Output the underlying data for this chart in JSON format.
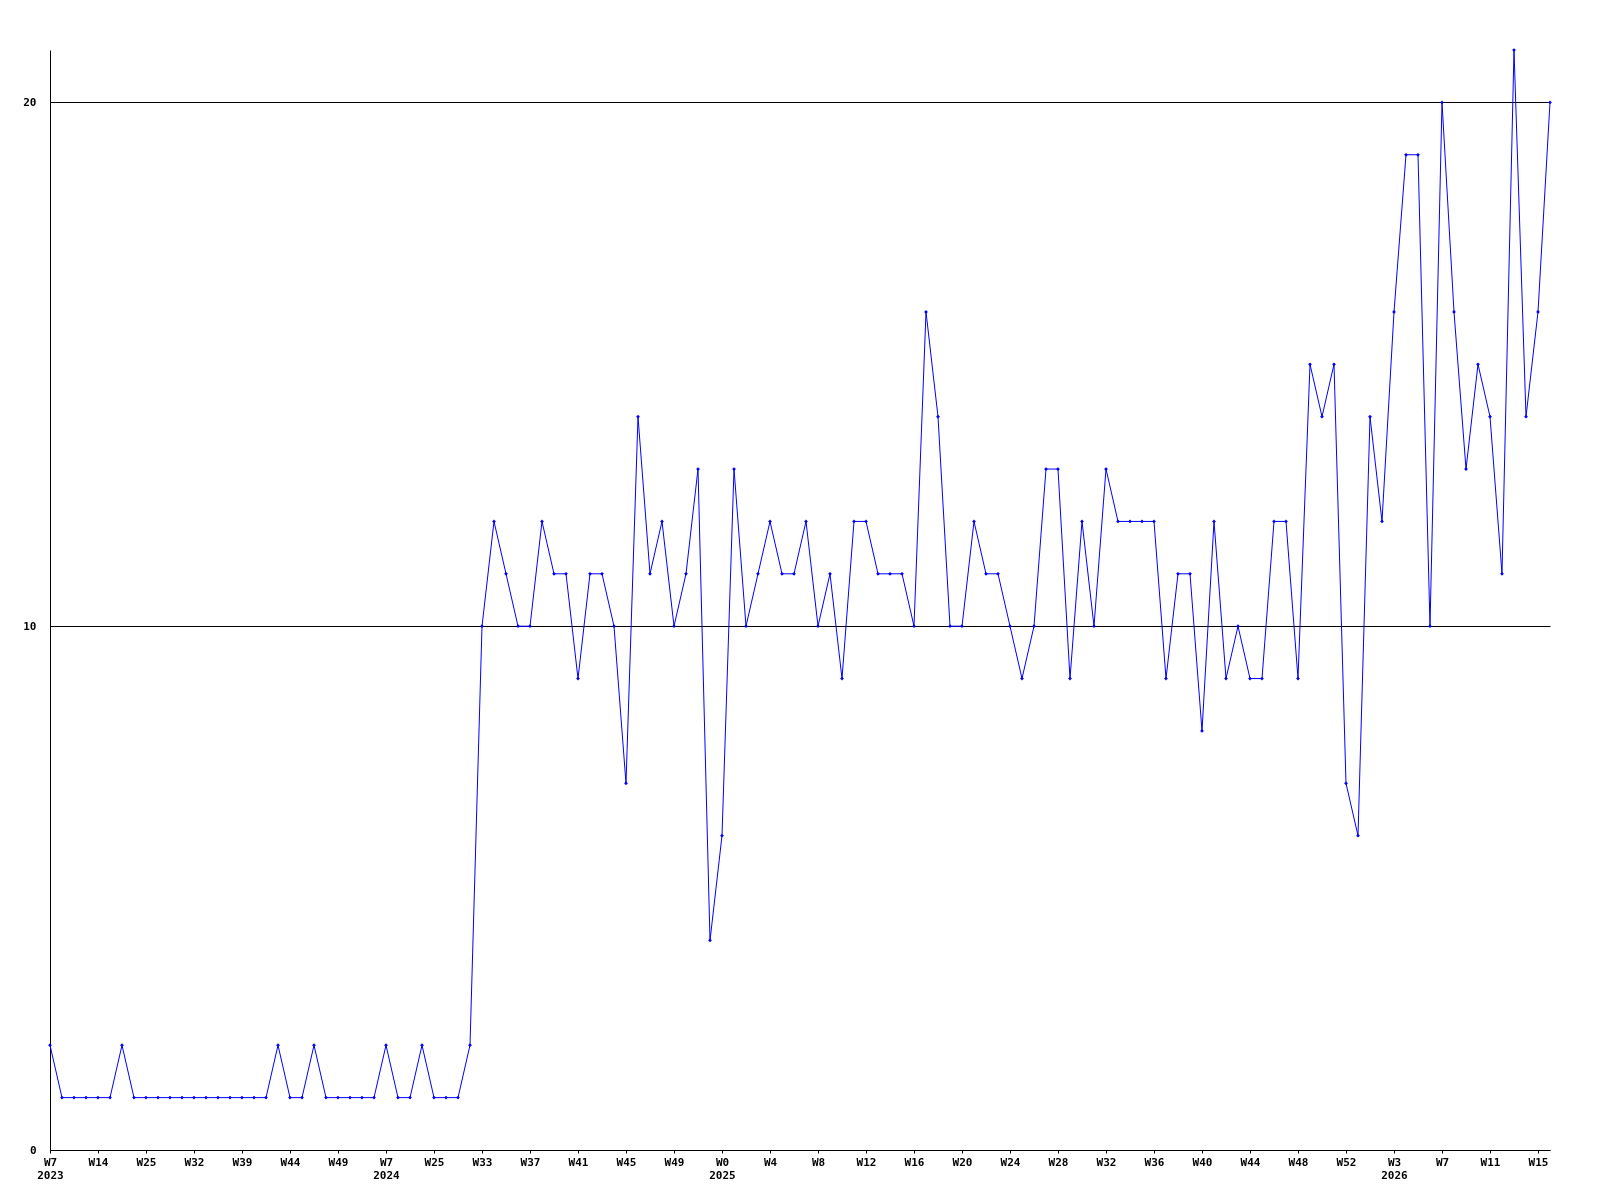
{
  "chart_data": {
    "type": "line",
    "categories": [
      "W7\n2023",
      null,
      null,
      null,
      "W14",
      null,
      null,
      null,
      "W25",
      null,
      null,
      null,
      "W32",
      null,
      null,
      null,
      "W39",
      null,
      null,
      null,
      "W44",
      null,
      null,
      null,
      "W49",
      null,
      null,
      null,
      "W7\n2024",
      null,
      null,
      null,
      "W25",
      null,
      null,
      null,
      "W33",
      null,
      null,
      null,
      "W37",
      null,
      null,
      null,
      "W41",
      null,
      null,
      null,
      "W45",
      null,
      null,
      null,
      "W49",
      null,
      null,
      null,
      "W0\n2025",
      null,
      null,
      null,
      "W4",
      null,
      null,
      null,
      "W8",
      null,
      null,
      null,
      "W12",
      null,
      null,
      null,
      "W16",
      null,
      null,
      null,
      "W20",
      null,
      null,
      null,
      "W24",
      null,
      null,
      null,
      "W28",
      null,
      null,
      null,
      "W32",
      null,
      null,
      null,
      "W36",
      null,
      null,
      null,
      "W40",
      null,
      null,
      null,
      "W44",
      null,
      null,
      null,
      "W48",
      null,
      null,
      null,
      "W52",
      null,
      null,
      null,
      "W3\n2026",
      null,
      null,
      null,
      "W7",
      null,
      null,
      null,
      "W11",
      null,
      null,
      null,
      "W15",
      null
    ],
    "series": [
      {
        "color": "#0000ff",
        "values": [
          2,
          1,
          1,
          1,
          1,
          1,
          2,
          1,
          1,
          1,
          1,
          1,
          1,
          1,
          1,
          1,
          1,
          1,
          1,
          2,
          1,
          1,
          2,
          1,
          1,
          1,
          1,
          1,
          2,
          1,
          1,
          2,
          1,
          1,
          1,
          2,
          10,
          12,
          11,
          10,
          10,
          12,
          11,
          11,
          9,
          11,
          11,
          10,
          7,
          14,
          11,
          12,
          10,
          11,
          13,
          4,
          6,
          13,
          10,
          11,
          12,
          11,
          11,
          12,
          10,
          11,
          9,
          12,
          12,
          11,
          11,
          11,
          10,
          16,
          14,
          10,
          10,
          12,
          11,
          11,
          10,
          9,
          10,
          13,
          13,
          9,
          12,
          10,
          13,
          12,
          12,
          12,
          12,
          9,
          11,
          11,
          8,
          12,
          9,
          10,
          9,
          9,
          12,
          12,
          9,
          15,
          14,
          15,
          7,
          6,
          14,
          12,
          16,
          19,
          19,
          10,
          20,
          16,
          13,
          15,
          14,
          11,
          21,
          14,
          16,
          20
        ]
      }
    ],
    "ylim": [
      0,
      21
    ],
    "yticks": [
      0,
      10,
      20
    ],
    "grid": "y",
    "marker": "diamond",
    "line_style": "solid"
  }
}
